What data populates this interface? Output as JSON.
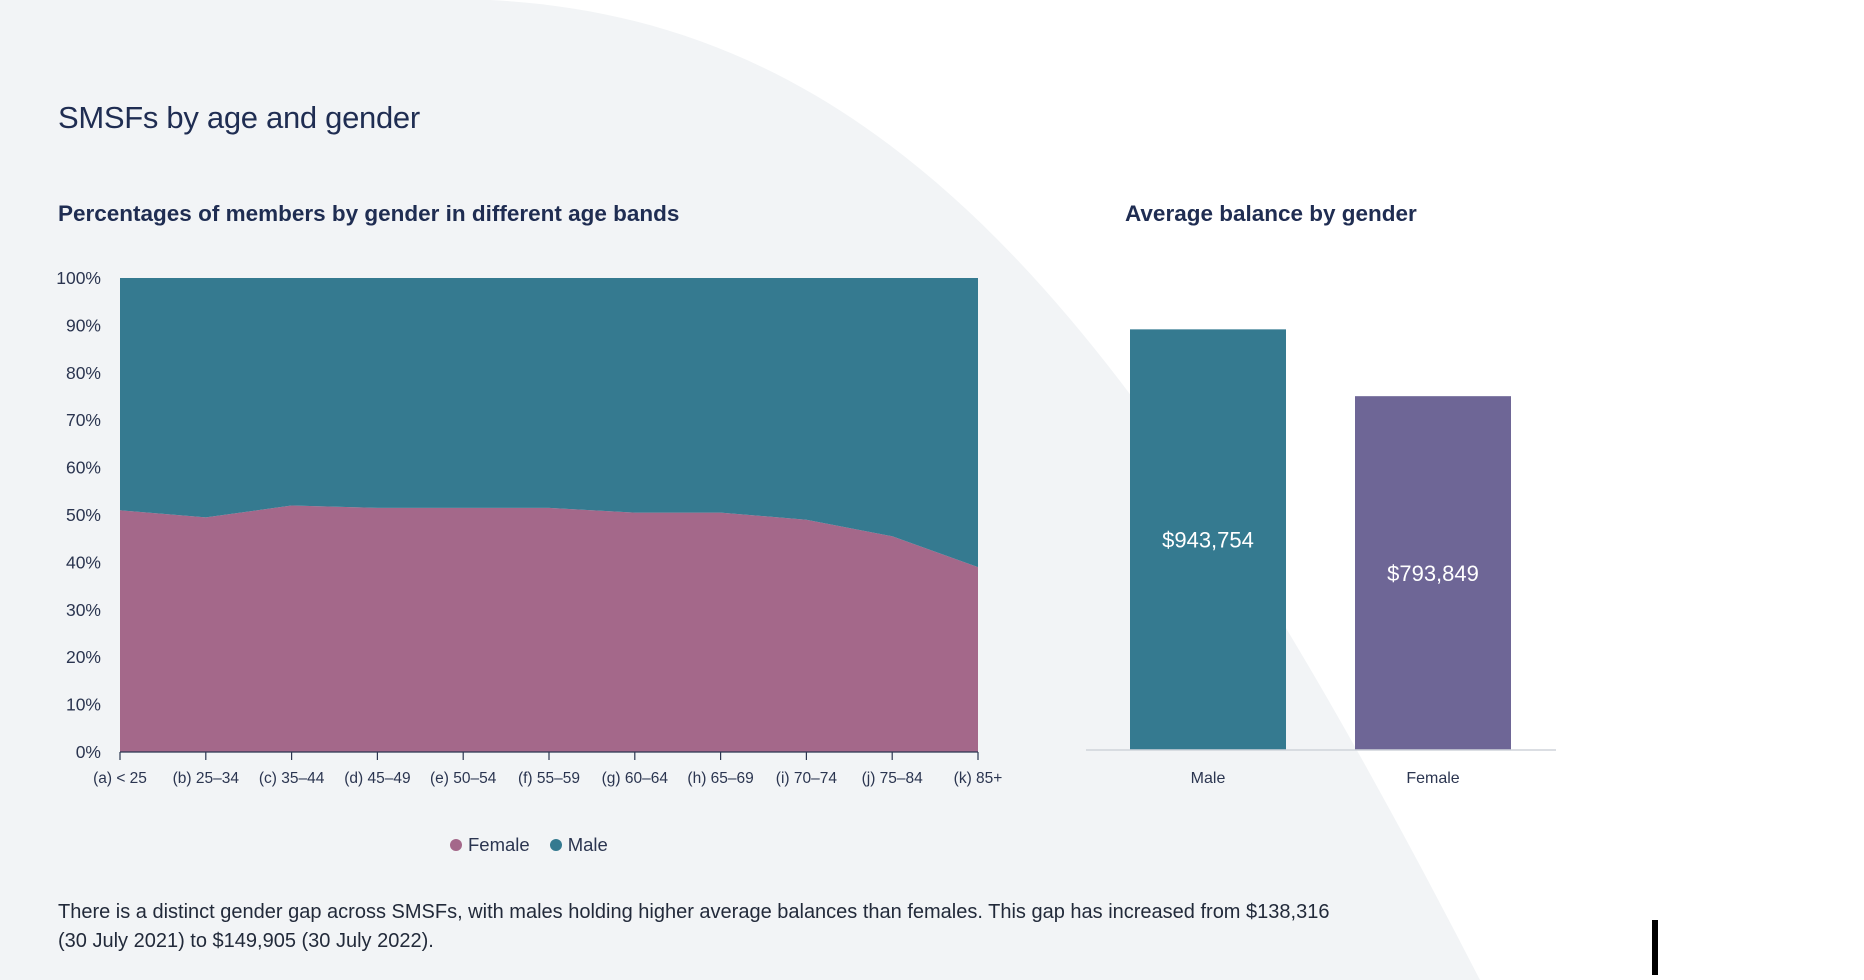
{
  "page_title": "SMSFs by age and gender",
  "colors": {
    "background": "#f2f4f6",
    "female": "#a4688a",
    "male": "#357a90",
    "female_bar": "#6e6696",
    "axis": "#2b3550"
  },
  "chart_data": [
    {
      "type": "area",
      "title": "Percentages of members by gender in different age bands",
      "stacked": true,
      "categories": [
        "(a) < 25",
        "(b) 25–34",
        "(c) 35–44",
        "(d) 45–49",
        "(e) 50–54",
        "(f) 55–59",
        "(g) 60–64",
        "(h) 65–69",
        "(i) 70–74",
        "(j) 75–84",
        "(k) 85+"
      ],
      "series": [
        {
          "name": "Female",
          "values": [
            51,
            49.5,
            52,
            51.5,
            51.5,
            51.5,
            50.5,
            50.5,
            49,
            45.5,
            39
          ]
        },
        {
          "name": "Male",
          "values": [
            49,
            50.5,
            48,
            48.5,
            48.5,
            48.5,
            49.5,
            49.5,
            51,
            54.5,
            61
          ]
        }
      ],
      "y_ticks": [
        "0%",
        "10%",
        "20%",
        "30%",
        "40%",
        "50%",
        "60%",
        "70%",
        "80%",
        "90%",
        "100%"
      ],
      "ylim": [
        0,
        100
      ],
      "legend_position": "bottom",
      "grid": false
    },
    {
      "type": "bar",
      "title": "Average balance by gender",
      "categories": [
        "Male",
        "Female"
      ],
      "values": [
        943754,
        793849
      ],
      "data_labels": [
        "$943,754",
        "$793,849"
      ],
      "ylim": [
        0,
        1050000
      ],
      "grid": false
    }
  ],
  "legend": [
    {
      "label": "Female",
      "color": "#a4688a"
    },
    {
      "label": "Male",
      "color": "#357a90"
    }
  ],
  "note": "There is a distinct gender gap across SMSFs, with males holding higher average balances than females. This gap has increased from $138,316 (30 July 2021) to $149,905 (30 July 2022)."
}
